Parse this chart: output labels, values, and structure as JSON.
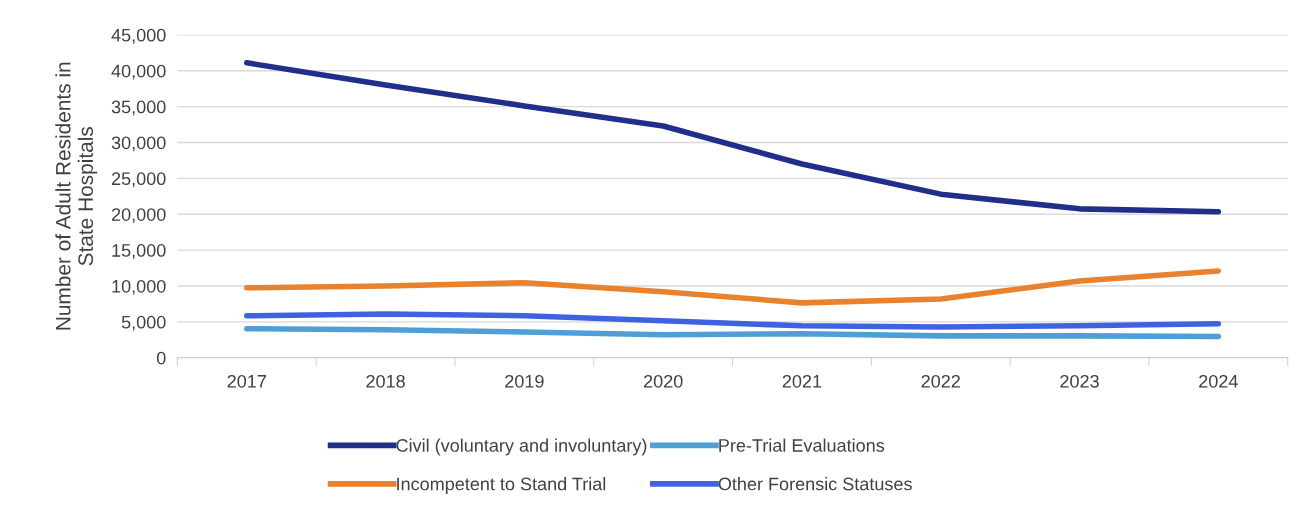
{
  "chart_data": {
    "type": "line",
    "ylabel": "Number of Adult Residents in\nState Hospitals",
    "categories": [
      "2017",
      "2018",
      "2019",
      "2020",
      "2021",
      "2022",
      "2023",
      "2024"
    ],
    "series": [
      {
        "name": "Civil (voluntary and involuntary)",
        "color": "#1f2f8a",
        "values": [
          41100,
          38000,
          35100,
          32300,
          27000,
          22800,
          20750,
          20350
        ]
      },
      {
        "name": "Incompetent to Stand Trial",
        "color": "#e8822f",
        "values": [
          9750,
          10000,
          10450,
          9200,
          7650,
          8200,
          10700,
          12100
        ]
      },
      {
        "name": "Pre-Trial Evaluations",
        "color": "#4f9fd6",
        "values": [
          4050,
          3900,
          3600,
          3200,
          3350,
          3050,
          3050,
          2950
        ]
      },
      {
        "name": "Other Forensic Statuses",
        "color": "#3f63e0",
        "values": [
          5850,
          6100,
          5850,
          5150,
          4450,
          4300,
          4450,
          4750
        ]
      }
    ],
    "ylim": [
      0,
      45000
    ],
    "yticks": [
      {
        "value": 0,
        "label": "0"
      },
      {
        "value": 5000,
        "label": "5,000"
      },
      {
        "value": 10000,
        "label": "10,000"
      },
      {
        "value": 15000,
        "label": "15,000"
      },
      {
        "value": 20000,
        "label": "20,000"
      },
      {
        "value": 25000,
        "label": "25,000"
      },
      {
        "value": 30000,
        "label": "30,000"
      },
      {
        "value": 35000,
        "label": "35,000"
      },
      {
        "value": 40000,
        "label": "40,000"
      },
      {
        "value": 45000,
        "label": "45,000"
      }
    ],
    "grid": "y",
    "legend": "bottom",
    "marker": "none",
    "line_style": "solid"
  }
}
